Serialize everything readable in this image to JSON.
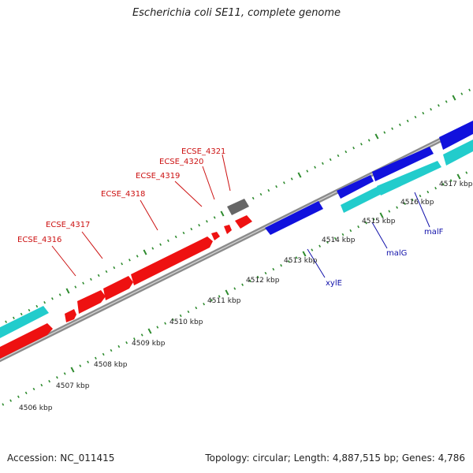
{
  "title": "Escherichia coli SE11, complete genome",
  "footer": {
    "accession": "Accession: NC_011415",
    "summary": "Topology: circular; Length: 4,887,515 bp; Genes: 4,786"
  },
  "colors": {
    "backbone": "#8c8c8c",
    "tick": "#2e8b2e",
    "forward_gene": "#ee1111",
    "reverse_gene": "#1111dd",
    "reverse_cds": "#22cccc",
    "other_feature": "#666666",
    "forward_label": "#cc1111",
    "reverse_label": "#1111aa"
  },
  "scale": {
    "unit": "kbp",
    "ticks": [
      {
        "label": "4506 kbp"
      },
      {
        "label": "4507 kbp"
      },
      {
        "label": "4508 kbp"
      },
      {
        "label": "4509 kbp"
      },
      {
        "label": "4510 kbp"
      },
      {
        "label": "4511 kbp"
      },
      {
        "label": "4512 kbp"
      },
      {
        "label": "4513 kbp"
      },
      {
        "label": "4514 kbp"
      },
      {
        "label": "4515 kbp"
      },
      {
        "label": "4516 kbp"
      },
      {
        "label": "4517 kbp"
      }
    ]
  },
  "gene_labels": [
    {
      "name": "ECSE_4316",
      "strand": "forward"
    },
    {
      "name": "ECSE_4317",
      "strand": "forward"
    },
    {
      "name": "ECSE_4318",
      "strand": "forward"
    },
    {
      "name": "ECSE_4319",
      "strand": "forward"
    },
    {
      "name": "ECSE_4320",
      "strand": "forward"
    },
    {
      "name": "ECSE_4321",
      "strand": "forward"
    },
    {
      "name": "xylE",
      "strand": "reverse"
    },
    {
      "name": "malG",
      "strand": "reverse"
    },
    {
      "name": "malF",
      "strand": "reverse"
    }
  ]
}
